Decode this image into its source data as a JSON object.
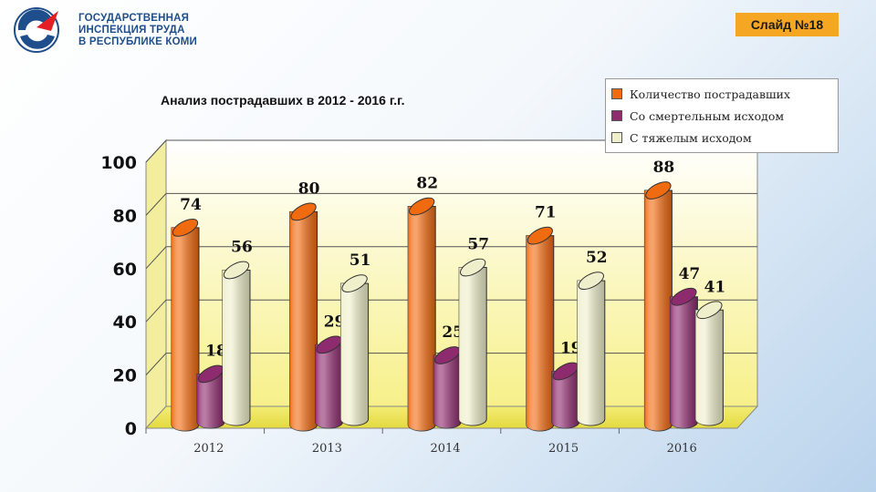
{
  "header": {
    "org_lines": [
      "ГОСУДАРСТВЕННАЯ",
      "ИНСПЕКЦИЯ ТРУДА",
      "В РЕСПУБЛИКЕ КОМИ"
    ],
    "slide_label": "Слайд №18"
  },
  "colors": {
    "accent": "#f5a623",
    "logo_blue": "#1f4e8c",
    "logo_red": "#e31e24"
  },
  "chart_data": {
    "type": "bar",
    "title": "Анализ пострадавших в 2012 - 2016 г.г.",
    "categories": [
      "2012",
      "2013",
      "2014",
      "2015",
      "2016"
    ],
    "series": [
      {
        "name": "Количество пострадавших",
        "values": [
          74,
          80,
          82,
          71,
          88
        ],
        "color": "#f06a10"
      },
      {
        "name": "Со смертельным исходом",
        "values": [
          18,
          29,
          25,
          19,
          47
        ],
        "color": "#8e2a6e"
      },
      {
        "name": "С тяжелым исходом",
        "values": [
          56,
          51,
          57,
          52,
          41
        ],
        "color": "#efefcc"
      }
    ],
    "ylim": [
      0,
      100
    ],
    "yticks": [
      "0",
      "20",
      "40",
      "60",
      "80",
      "100"
    ],
    "grid": true,
    "legend_position": "top-right",
    "style": "3d-cylinder"
  }
}
